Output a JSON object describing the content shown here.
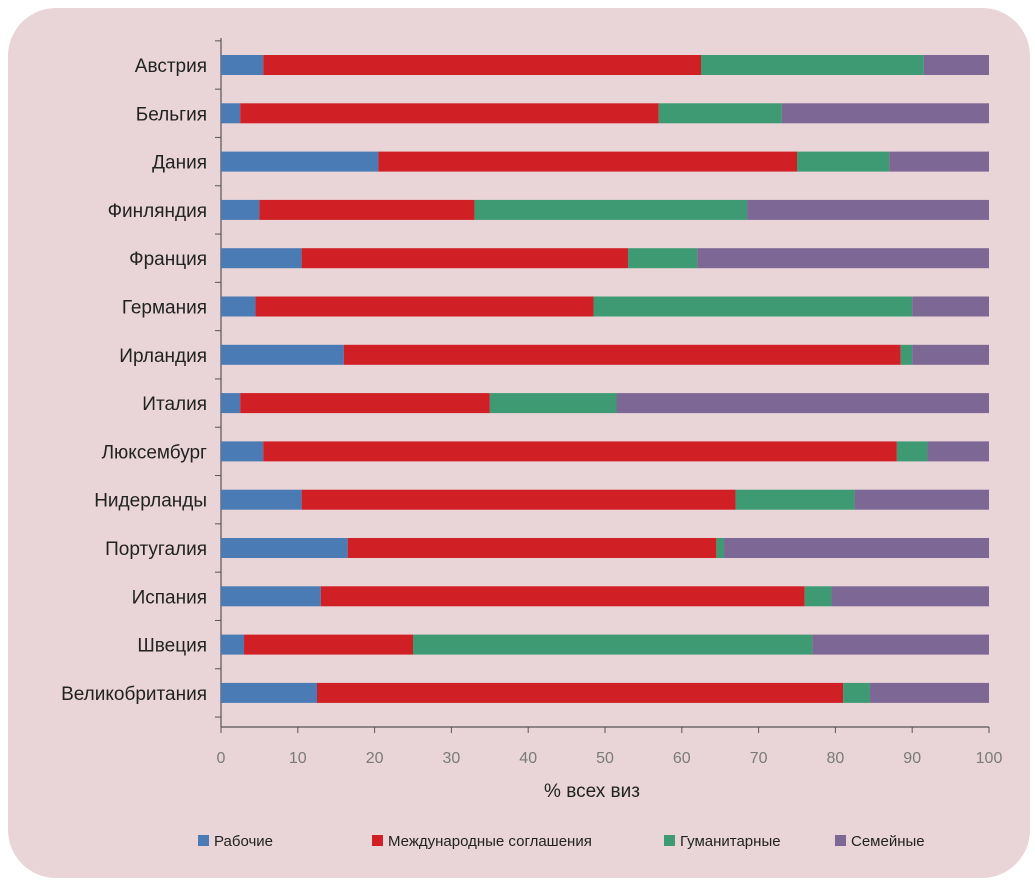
{
  "chart_data": {
    "type": "bar",
    "orientation": "horizontal",
    "stacked": true,
    "title": "",
    "xlabel": "% всех виз",
    "ylabel": "",
    "xlim": [
      0,
      100
    ],
    "xticks": [
      "0",
      "10",
      "20",
      "30",
      "40",
      "50",
      "60",
      "70",
      "80",
      "90",
      "100"
    ],
    "grid": false,
    "legend_position": "bottom",
    "categories": [
      "Австрия",
      "Бельгия",
      "Дания",
      "Финляндия",
      "Франция",
      "Германия",
      "Ирландия",
      "Италия",
      "Люксембург",
      "Нидерланды",
      "Португалия",
      "Испания",
      "Швеция",
      "Великобритания"
    ],
    "series": [
      {
        "name": "Рабочие",
        "color": "#4a7bb5",
        "values": [
          5.5,
          2.5,
          20.5,
          5,
          10.5,
          4.5,
          16,
          2.5,
          5.5,
          10.5,
          16.5,
          13,
          3,
          12.5
        ]
      },
      {
        "name": "Международные соглашения",
        "color": "#d11f26",
        "values": [
          57,
          54.5,
          54.5,
          28,
          42.5,
          44,
          72.5,
          32.5,
          82.5,
          56.5,
          48,
          63,
          22,
          68.5
        ]
      },
      {
        "name": "Гуманитарные",
        "color": "#3d9a72",
        "values": [
          29,
          16,
          12,
          35.5,
          9,
          41.5,
          1.5,
          16.5,
          4,
          15.5,
          1,
          3.5,
          52,
          3.5
        ]
      },
      {
        "name": "Семейные",
        "color": "#7d6795",
        "values": [
          8.5,
          27,
          13,
          31.5,
          38,
          10,
          10,
          48.5,
          8,
          17.5,
          34.5,
          20.5,
          23,
          15.5
        ]
      }
    ]
  }
}
